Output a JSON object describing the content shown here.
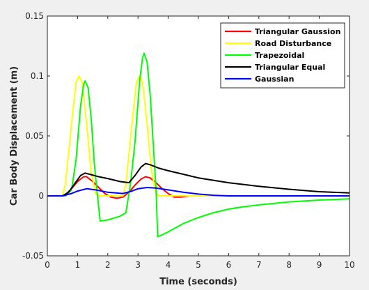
{
  "chart_data": {
    "type": "line",
    "title": "",
    "xlabel": "Time (seconds)",
    "ylabel": "Car Body Displacement (m)",
    "xlim": [
      0,
      10
    ],
    "ylim": [
      -0.05,
      0.15
    ],
    "xticks": [
      0,
      1,
      2,
      3,
      4,
      5,
      6,
      7,
      8,
      9,
      10
    ],
    "xtick_labels": [
      "0",
      "1",
      "2",
      "3",
      "4",
      "5",
      "6",
      "7",
      "8",
      "9",
      "10"
    ],
    "yticks": [
      -0.05,
      0,
      0.05,
      0.1,
      0.15
    ],
    "ytick_labels": [
      "-0.05",
      "0",
      "0.05",
      "0.1",
      "0.15"
    ],
    "grid": false,
    "legend_position": "top-right",
    "series": [
      {
        "name": "Triangular Gaussion",
        "color": "#ff0000",
        "x": [
          0,
          0.5,
          0.6,
          0.8,
          1.0,
          1.2,
          1.3,
          1.5,
          1.7,
          1.9,
          2.1,
          2.3,
          2.5,
          2.7,
          2.9,
          3.1,
          3.25,
          3.4,
          3.6,
          3.8,
          4.0,
          4.2,
          4.4,
          4.7,
          5.0,
          6.0,
          10
        ],
        "y": [
          0,
          0,
          0.001,
          0.006,
          0.012,
          0.016,
          0.016,
          0.012,
          0.007,
          0.002,
          -0.001,
          -0.002,
          -0.001,
          0.003,
          0.009,
          0.014,
          0.016,
          0.015,
          0.011,
          0.006,
          0.002,
          -0.001,
          -0.001,
          0,
          0,
          0,
          0
        ]
      },
      {
        "name": "Road Disturbance",
        "color": "#ffff00",
        "x": [
          0,
          0.5,
          0.6,
          0.8,
          0.95,
          1.05,
          1.15,
          1.3,
          1.45,
          1.6,
          1.7,
          2.5,
          2.6,
          2.8,
          2.95,
          3.05,
          3.15,
          3.3,
          3.45,
          3.6,
          3.7,
          10
        ],
        "y": [
          0,
          0,
          0.01,
          0.06,
          0.095,
          0.1,
          0.095,
          0.06,
          0.02,
          0.002,
          0,
          0,
          0.01,
          0.06,
          0.095,
          0.1,
          0.095,
          0.06,
          0.02,
          0.002,
          0,
          0
        ]
      },
      {
        "name": "Trapezoidal",
        "color": "#00ff00",
        "x": [
          0,
          0.6,
          0.8,
          0.95,
          1.1,
          1.2,
          1.25,
          1.35,
          1.45,
          1.55,
          1.65,
          1.75,
          2.0,
          2.4,
          2.6,
          2.75,
          2.9,
          3.05,
          3.15,
          3.2,
          3.3,
          3.4,
          3.5,
          3.6,
          3.65,
          3.75,
          4.0,
          4.5,
          5.0,
          5.5,
          6.0,
          6.5,
          7.0,
          8.0,
          9.0,
          10.0
        ],
        "y": [
          0,
          0,
          0.005,
          0.03,
          0.075,
          0.093,
          0.096,
          0.09,
          0.065,
          0.028,
          0.002,
          -0.021,
          -0.02,
          -0.017,
          -0.014,
          0.01,
          0.045,
          0.095,
          0.115,
          0.119,
          0.112,
          0.085,
          0.045,
          0.005,
          -0.034,
          -0.033,
          -0.03,
          -0.023,
          -0.018,
          -0.014,
          -0.011,
          -0.009,
          -0.0075,
          -0.005,
          -0.0035,
          -0.0025
        ]
      },
      {
        "name": "Triangular Equal",
        "color": "#000000",
        "x": [
          0,
          0.5,
          0.7,
          0.9,
          1.1,
          1.25,
          1.4,
          1.7,
          2.0,
          2.4,
          2.7,
          2.9,
          3.1,
          3.25,
          3.4,
          3.7,
          4.0,
          4.5,
          5.0,
          6.0,
          7.0,
          8.0,
          9.0,
          10.0
        ],
        "y": [
          0,
          0,
          0.003,
          0.01,
          0.017,
          0.019,
          0.018,
          0.016,
          0.0145,
          0.012,
          0.011,
          0.017,
          0.024,
          0.027,
          0.026,
          0.023,
          0.021,
          0.018,
          0.015,
          0.011,
          0.008,
          0.0055,
          0.0035,
          0.0025
        ]
      },
      {
        "name": "Gaussian",
        "color": "#0000ff",
        "x": [
          0,
          0.5,
          0.8,
          1.0,
          1.3,
          1.6,
          2.0,
          2.5,
          2.8,
          3.0,
          3.3,
          3.6,
          4.0,
          4.5,
          5.0,
          5.5,
          6.0,
          10.0
        ],
        "y": [
          0,
          0,
          0.002,
          0.004,
          0.006,
          0.005,
          0.003,
          0.002,
          0.004,
          0.006,
          0.007,
          0.0065,
          0.005,
          0.003,
          0.0015,
          0.0005,
          0,
          0
        ]
      }
    ]
  }
}
